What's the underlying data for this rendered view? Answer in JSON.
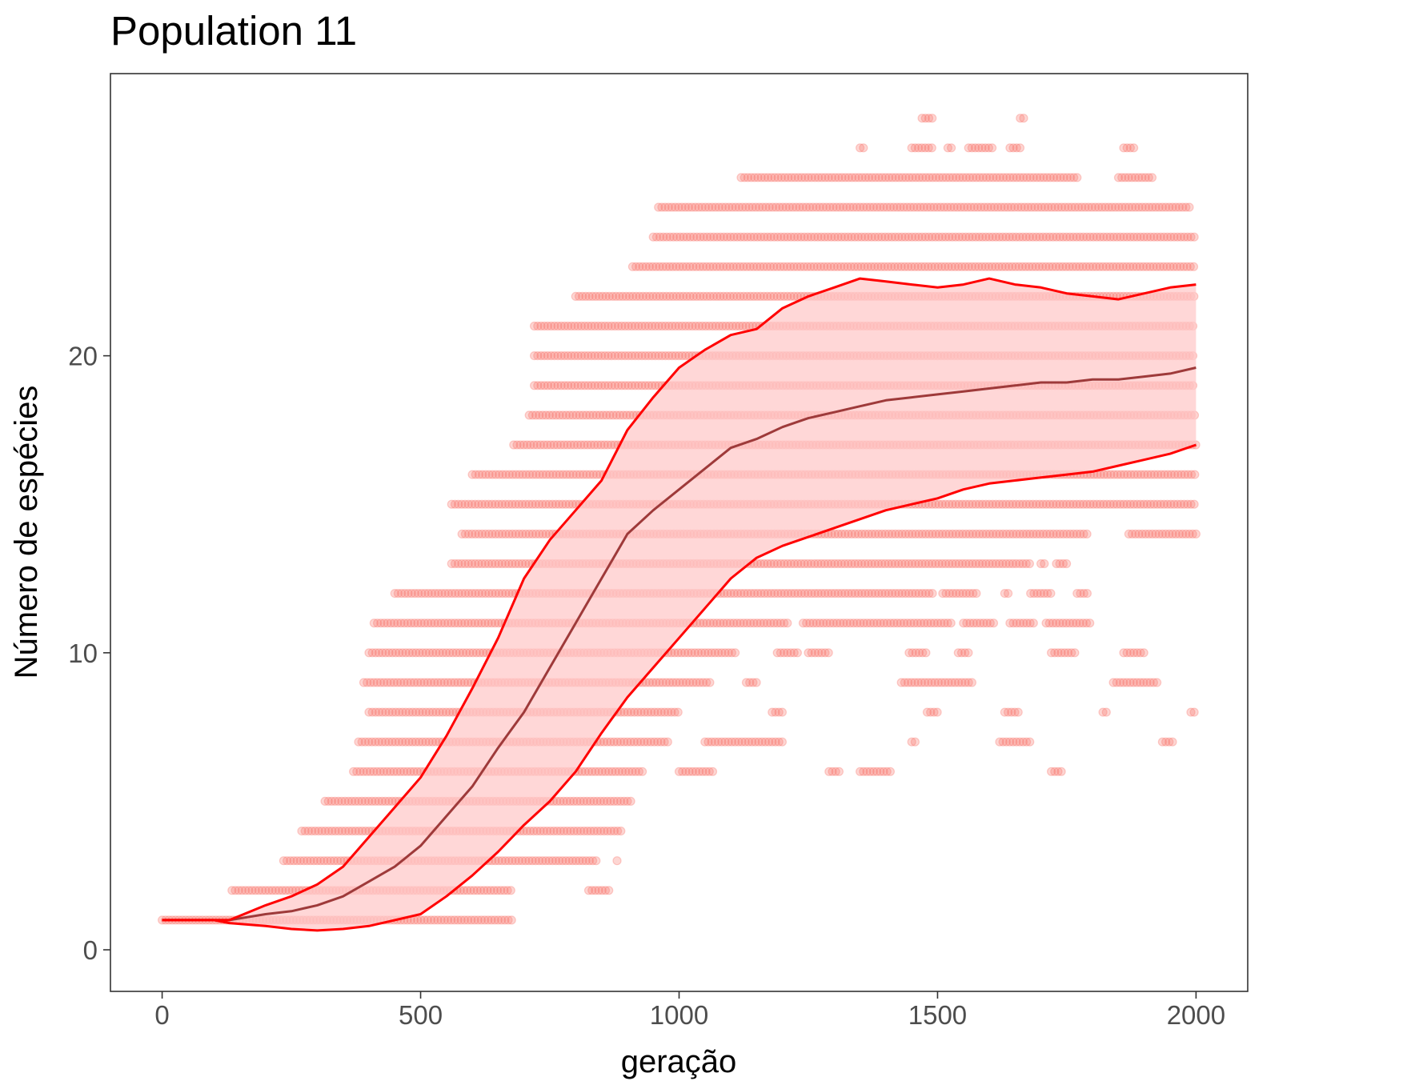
{
  "chart_data": {
    "type": "scatter",
    "title": "Population 11",
    "xlabel": "geração",
    "ylabel": "Número de espécies",
    "xlim": [
      -100,
      2100
    ],
    "ylim": [
      -1.4,
      29.5
    ],
    "xticks": [
      0,
      500,
      1000,
      1500,
      2000
    ],
    "xtick_labels": [
      "0",
      "500",
      "1000",
      "1500",
      "2000"
    ],
    "yticks": [
      0,
      10,
      20
    ],
    "ytick_labels": [
      "0",
      "10",
      "20"
    ],
    "grid": false,
    "legend": "none",
    "colors": {
      "points": "#F8766D",
      "band_fill": "#FFC9C9",
      "bounds_line": "#FF0000",
      "mean_line": "#9E3A3A",
      "panel_border": "#333333"
    },
    "series": [
      {
        "role": "points",
        "note_points": "one point per individual run per generation; dense horizontal rows at integer species counts",
        "rows": [
          {
            "y": 1,
            "x_ranges": [
              [
                0,
                680
              ]
            ]
          },
          {
            "y": 2,
            "x_ranges": [
              [
                135,
                680
              ],
              [
                825,
                870
              ]
            ]
          },
          {
            "y": 3,
            "x_ranges": [
              [
                235,
                840
              ],
              [
                880,
                880
              ]
            ]
          },
          {
            "y": 4,
            "x_ranges": [
              [
                270,
                890
              ]
            ]
          },
          {
            "y": 5,
            "x_ranges": [
              [
                315,
                910
              ]
            ]
          },
          {
            "y": 6,
            "x_ranges": [
              [
                370,
                930
              ],
              [
                1000,
                1070
              ],
              [
                1290,
                1310
              ],
              [
                1350,
                1410
              ],
              [
                1720,
                1740
              ]
            ]
          },
          {
            "y": 7,
            "x_ranges": [
              [
                380,
                980
              ],
              [
                1050,
                1200
              ],
              [
                1450,
                1460
              ],
              [
                1620,
                1680
              ],
              [
                1935,
                1960
              ]
            ]
          },
          {
            "y": 8,
            "x_ranges": [
              [
                400,
                1000
              ],
              [
                1180,
                1200
              ],
              [
                1480,
                1500
              ],
              [
                1630,
                1660
              ],
              [
                1820,
                1830
              ],
              [
                1990,
                2000
              ]
            ]
          },
          {
            "y": 9,
            "x_ranges": [
              [
                390,
                1060
              ],
              [
                1130,
                1150
              ],
              [
                1430,
                1570
              ],
              [
                1840,
                1930
              ]
            ]
          },
          {
            "y": 10,
            "x_ranges": [
              [
                400,
                1110
              ],
              [
                1190,
                1230
              ],
              [
                1250,
                1290
              ],
              [
                1445,
                1480
              ],
              [
                1540,
                1560
              ],
              [
                1720,
                1770
              ],
              [
                1860,
                1900
              ]
            ]
          },
          {
            "y": 11,
            "x_ranges": [
              [
                410,
                1210
              ],
              [
                1240,
                1530
              ],
              [
                1550,
                1610
              ],
              [
                1640,
                1690
              ],
              [
                1710,
                1800
              ]
            ]
          },
          {
            "y": 12,
            "x_ranges": [
              [
                450,
                1490
              ],
              [
                1510,
                1580
              ],
              [
                1630,
                1640
              ],
              [
                1680,
                1720
              ],
              [
                1770,
                1790
              ]
            ]
          },
          {
            "y": 13,
            "x_ranges": [
              [
                560,
                1680
              ],
              [
                1700,
                1710
              ],
              [
                1730,
                1750
              ]
            ]
          },
          {
            "y": 14,
            "x_ranges": [
              [
                580,
                1790
              ],
              [
                1870,
                2000
              ]
            ]
          },
          {
            "y": 15,
            "x_ranges": [
              [
                560,
                2000
              ]
            ]
          },
          {
            "y": 16,
            "x_ranges": [
              [
                600,
                2000
              ]
            ]
          },
          {
            "y": 17,
            "x_ranges": [
              [
                680,
                2000
              ]
            ]
          },
          {
            "y": 18,
            "x_ranges": [
              [
                710,
                2000
              ]
            ]
          },
          {
            "y": 19,
            "x_ranges": [
              [
                720,
                2000
              ]
            ]
          },
          {
            "y": 20,
            "x_ranges": [
              [
                720,
                2000
              ]
            ]
          },
          {
            "y": 21,
            "x_ranges": [
              [
                720,
                2000
              ]
            ]
          },
          {
            "y": 22,
            "x_ranges": [
              [
                800,
                2000
              ]
            ]
          },
          {
            "y": 23,
            "x_ranges": [
              [
                910,
                2000
              ]
            ]
          },
          {
            "y": 24,
            "x_ranges": [
              [
                950,
                2000
              ]
            ]
          },
          {
            "y": 25,
            "x_ranges": [
              [
                960,
                1990
              ]
            ]
          },
          {
            "y": 26,
            "x_ranges": [
              [
                1120,
                1770
              ],
              [
                1850,
                1920
              ]
            ]
          },
          {
            "y": 27,
            "x_ranges": [
              [
                1350,
                1360
              ],
              [
                1450,
                1490
              ],
              [
                1520,
                1530
              ],
              [
                1560,
                1610
              ],
              [
                1640,
                1660
              ],
              [
                1860,
                1880
              ]
            ]
          },
          {
            "y": 28,
            "x_ranges": [
              [
                1470,
                1490
              ],
              [
                1660,
                1670
              ]
            ]
          }
        ]
      },
      {
        "role": "mean",
        "x": [
          0,
          100,
          130,
          200,
          250,
          300,
          350,
          400,
          450,
          500,
          550,
          600,
          650,
          700,
          750,
          800,
          850,
          900,
          950,
          1000,
          1050,
          1100,
          1150,
          1200,
          1250,
          1300,
          1350,
          1400,
          1450,
          1500,
          1550,
          1600,
          1650,
          1700,
          1750,
          1800,
          1850,
          1900,
          1950,
          2000
        ],
        "y": [
          1.0,
          1.0,
          1.0,
          1.2,
          1.3,
          1.5,
          1.8,
          2.3,
          2.8,
          3.5,
          4.5,
          5.5,
          6.8,
          8.0,
          9.5,
          11.0,
          12.5,
          14.0,
          14.8,
          15.5,
          16.2,
          16.9,
          17.2,
          17.6,
          17.9,
          18.1,
          18.3,
          18.5,
          18.6,
          18.7,
          18.8,
          18.9,
          19.0,
          19.1,
          19.1,
          19.2,
          19.2,
          19.3,
          19.4,
          19.6
        ]
      },
      {
        "role": "upper_bound",
        "x": [
          0,
          100,
          130,
          200,
          250,
          300,
          350,
          400,
          450,
          500,
          550,
          600,
          650,
          700,
          750,
          800,
          850,
          900,
          950,
          1000,
          1050,
          1100,
          1150,
          1200,
          1250,
          1300,
          1350,
          1400,
          1450,
          1500,
          1550,
          1600,
          1650,
          1700,
          1750,
          1800,
          1850,
          1900,
          1950,
          2000
        ],
        "y": [
          1.0,
          1.0,
          1.0,
          1.5,
          1.8,
          2.2,
          2.8,
          3.8,
          4.8,
          5.8,
          7.2,
          8.8,
          10.5,
          12.5,
          13.8,
          14.8,
          15.8,
          17.5,
          18.6,
          19.6,
          20.2,
          20.7,
          20.9,
          21.6,
          22.0,
          22.3,
          22.6,
          22.5,
          22.4,
          22.3,
          22.4,
          22.6,
          22.4,
          22.3,
          22.1,
          22.0,
          21.9,
          22.1,
          22.3,
          22.4
        ]
      },
      {
        "role": "lower_bound",
        "x": [
          0,
          100,
          130,
          200,
          250,
          300,
          350,
          400,
          450,
          500,
          550,
          600,
          650,
          700,
          750,
          800,
          850,
          900,
          950,
          1000,
          1050,
          1100,
          1150,
          1200,
          1250,
          1300,
          1350,
          1400,
          1450,
          1500,
          1550,
          1600,
          1650,
          1700,
          1750,
          1800,
          1850,
          1900,
          1950,
          2000
        ],
        "y": [
          1.0,
          1.0,
          0.9,
          0.8,
          0.7,
          0.65,
          0.7,
          0.8,
          1.0,
          1.2,
          1.8,
          2.5,
          3.3,
          4.2,
          5.0,
          6.0,
          7.3,
          8.5,
          9.5,
          10.5,
          11.5,
          12.5,
          13.2,
          13.6,
          13.9,
          14.2,
          14.5,
          14.8,
          15.0,
          15.2,
          15.5,
          15.7,
          15.8,
          15.9,
          16.0,
          16.1,
          16.3,
          16.5,
          16.7,
          17.0
        ]
      }
    ]
  }
}
